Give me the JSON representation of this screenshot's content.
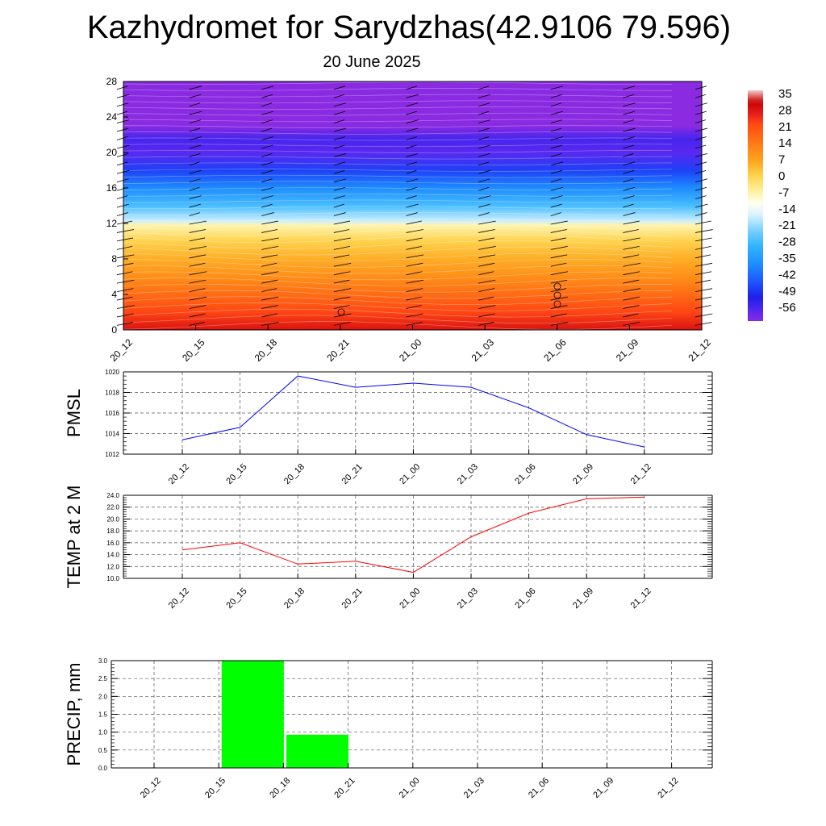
{
  "header": {
    "title": "Kazhydromet for Sarydzhas(42.9106 79.596)",
    "subtitle": "20 June 2025"
  },
  "chart_data": [
    {
      "type": "heatmap",
      "description_source": "time-height temperature cross section with wind barbs",
      "x_tick_labels": [
        "20_12",
        "20_15",
        "20_18",
        "20_21",
        "21_00",
        "21_03",
        "21_06",
        "21_09",
        "21_12"
      ],
      "y_tick_labels": [
        "0",
        "4",
        "8",
        "12",
        "16",
        "20",
        "24",
        "28"
      ],
      "ylim": [
        0,
        28
      ],
      "colorbar_labels": [
        "35",
        "28",
        "21",
        "14",
        "7",
        "0",
        "-7",
        "-14",
        "-21",
        "-28",
        "-35",
        "-42",
        "-49",
        "-56"
      ],
      "colorbar_range": [
        -60,
        38
      ],
      "temperature_profile": [
        {
          "h": 0,
          "t": 30
        },
        {
          "h": 2,
          "t": 24
        },
        {
          "h": 4,
          "t": 18
        },
        {
          "h": 6,
          "t": 12
        },
        {
          "h": 8,
          "t": 7
        },
        {
          "h": 10,
          "t": 2
        },
        {
          "h": 11.8,
          "t": -6
        },
        {
          "h": 12.3,
          "t": -16
        },
        {
          "h": 14,
          "t": -26
        },
        {
          "h": 16,
          "t": -36
        },
        {
          "h": 18,
          "t": -46
        },
        {
          "h": 20,
          "t": -56
        },
        {
          "h": 21.5,
          "t": -54
        },
        {
          "h": 23,
          "t": -60
        },
        {
          "h": 28,
          "t": -60
        }
      ],
      "colors": {
        "palette": [
          "#e0e0ff",
          "#8a2be2",
          "#5a28f0",
          "#1f1fe8",
          "#1e50ff",
          "#1e8cff",
          "#32b4ff",
          "#7fd2ff",
          "#d9f3ff",
          "#fffff0",
          "#fff3a0",
          "#ffd24d",
          "#ffa51e",
          "#ff7814",
          "#ff4614",
          "#e61e1e",
          "#c80000",
          "#f5c8c8"
        ]
      }
    },
    {
      "type": "line",
      "ylabel": "PMSL",
      "categories": [
        "20_12",
        "20_15",
        "20_18",
        "20_21",
        "21_00",
        "21_03",
        "21_06",
        "21_09",
        "21_12"
      ],
      "values": [
        1013.4,
        1014.6,
        1019.6,
        1018.5,
        1018.9,
        1018.5,
        1016.5,
        1013.9,
        1012.7
      ],
      "ylim": [
        1012,
        1020
      ],
      "y_tick_labels": [
        "1012",
        "1014",
        "1016",
        "1018",
        "1020"
      ],
      "grid": true,
      "colors": {
        "line": "#0000ff"
      }
    },
    {
      "type": "line",
      "ylabel": "TEMP at 2 M",
      "categories": [
        "20_12",
        "20_15",
        "20_18",
        "20_21",
        "21_00",
        "21_03",
        "21_06",
        "21_09",
        "21_12"
      ],
      "values": [
        14.8,
        16.0,
        12.4,
        12.9,
        11.0,
        17.0,
        21.0,
        23.4,
        23.7
      ],
      "ylim": [
        10,
        24
      ],
      "y_tick_labels": [
        "10.0",
        "12.0",
        "14.0",
        "16.0",
        "18.0",
        "20.0",
        "22.0",
        "24.0"
      ],
      "grid": true,
      "colors": {
        "line": "#ff0000"
      }
    },
    {
      "type": "bar",
      "ylabel": "PRECIP, mm",
      "categories": [
        "20_12",
        "20_15",
        "20_18",
        "20_21",
        "21_00",
        "21_03",
        "21_06",
        "21_09",
        "21_12"
      ],
      "values": [
        0,
        0,
        3.0,
        0.93,
        0,
        0,
        0,
        0,
        0
      ],
      "ylim": [
        0,
        3
      ],
      "y_tick_labels": [
        "0.0",
        "0.5",
        "1.0",
        "1.5",
        "2.0",
        "2.5",
        "3.0"
      ],
      "grid": true,
      "colors": {
        "bar": "#00ff00"
      }
    }
  ]
}
